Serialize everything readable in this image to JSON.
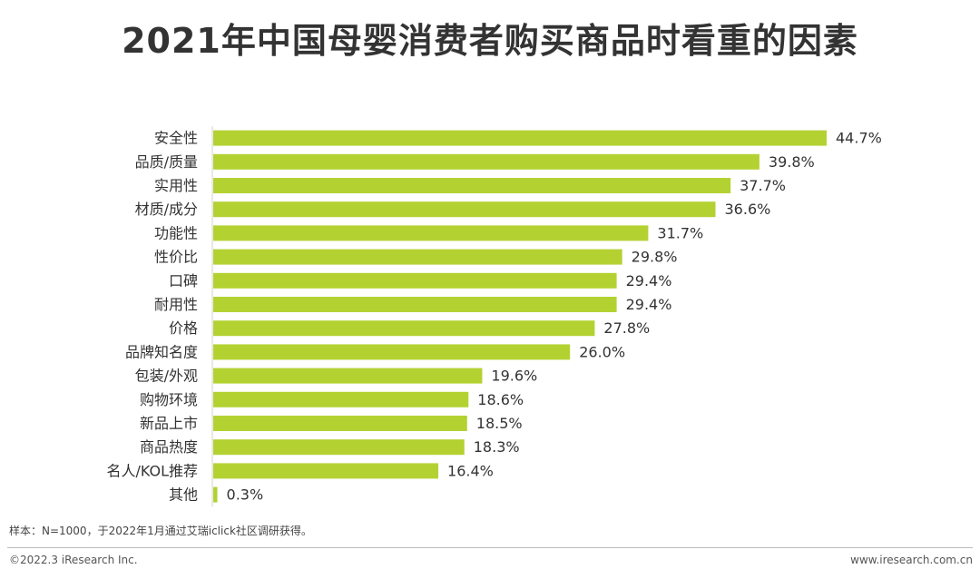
{
  "chart_data": {
    "type": "bar",
    "orientation": "horizontal",
    "title": "2021年中国母婴消费者购买商品时看重的因素",
    "xlabel": "",
    "ylabel": "",
    "xlim": [
      0,
      50
    ],
    "grid": false,
    "bar_color": "#b3d232",
    "categories": [
      "安全性",
      "品质/质量",
      "实用性",
      "材质/成分",
      "功能性",
      "性价比",
      "口碑",
      "耐用性",
      "价格",
      "品牌知名度",
      "包装/外观",
      "购物环境",
      "新品上市",
      "商品热度",
      "名人/KOL推荐",
      "其他"
    ],
    "values": [
      44.7,
      39.8,
      37.7,
      36.6,
      31.7,
      29.8,
      29.4,
      29.4,
      27.8,
      26.0,
      19.6,
      18.6,
      18.5,
      18.3,
      16.4,
      0.3
    ],
    "value_labels": [
      "44.7%",
      "39.8%",
      "37.7%",
      "36.6%",
      "31.7%",
      "29.8%",
      "29.4%",
      "29.4%",
      "27.8%",
      "26.0%",
      "19.6%",
      "18.6%",
      "18.5%",
      "18.3%",
      "16.4%",
      "0.3%"
    ]
  },
  "footer": {
    "note": "样本：N=1000，于2022年1月通过艾瑞iclick社区调研获得。",
    "copyright": "©2022.3 iResearch Inc.",
    "website": "www.iresearch.com.cn"
  }
}
